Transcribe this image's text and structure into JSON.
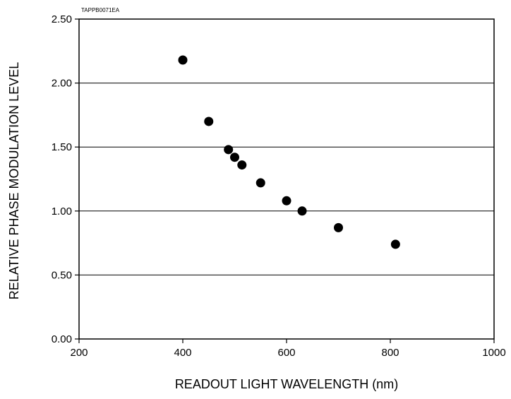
{
  "chart_data": {
    "type": "scatter",
    "code_label": "TAPPB0071EA",
    "xlabel": "READOUT LIGHT WAVELENGTH (nm)",
    "ylabel": "RELATIVE PHASE MODULATION LEVEL",
    "xlim": [
      200,
      1000
    ],
    "ylim": [
      0,
      2.5
    ],
    "x_ticks": [
      "200",
      "400",
      "600",
      "800",
      "1000"
    ],
    "y_ticks": [
      "0.00",
      "0.50",
      "1.00",
      "1.50",
      "2.00",
      "2.50"
    ],
    "grid": "horizontal",
    "marker_color": "#000000",
    "points": [
      {
        "x": 400,
        "y": 2.18
      },
      {
        "x": 450,
        "y": 1.7
      },
      {
        "x": 488,
        "y": 1.48
      },
      {
        "x": 500,
        "y": 1.42
      },
      {
        "x": 514,
        "y": 1.36
      },
      {
        "x": 550,
        "y": 1.22
      },
      {
        "x": 600,
        "y": 1.08
      },
      {
        "x": 630,
        "y": 1.0
      },
      {
        "x": 700,
        "y": 0.87
      },
      {
        "x": 810,
        "y": 0.74
      }
    ]
  }
}
